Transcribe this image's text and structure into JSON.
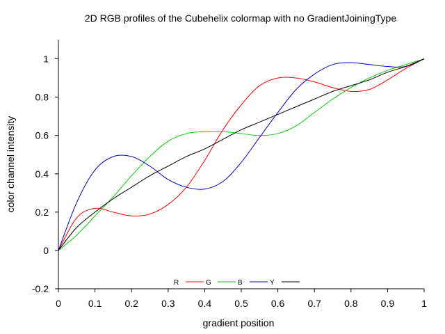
{
  "chart_data": {
    "type": "line",
    "title": "2D RGB profiles of the Cubehelix colormap with no GradientJoiningType",
    "xlabel": "gradient position",
    "ylabel": "color channel intensity",
    "xlim": [
      0,
      1
    ],
    "ylim": [
      -0.2,
      1.1
    ],
    "xticks": [
      "0",
      "0.1",
      "0.2",
      "0.3",
      "0.4",
      "0.5",
      "0.6",
      "0.7",
      "0.8",
      "0.9",
      "1"
    ],
    "yticks": [
      "-0.2",
      "0",
      "0.2",
      "0.4",
      "0.6",
      "0.8",
      "1"
    ],
    "grid": false,
    "legend_position": "bottom-center",
    "x": [
      0,
      0.05,
      0.1,
      0.15,
      0.2,
      0.25,
      0.3,
      0.35,
      0.4,
      0.45,
      0.5,
      0.55,
      0.6,
      0.65,
      0.7,
      0.75,
      0.8,
      0.85,
      0.9,
      0.95,
      1
    ],
    "series": [
      {
        "name": "R",
        "color": "#ff0000",
        "values": [
          0.0,
          0.17,
          0.22,
          0.2,
          0.18,
          0.19,
          0.24,
          0.33,
          0.47,
          0.63,
          0.76,
          0.86,
          0.9,
          0.9,
          0.88,
          0.85,
          0.83,
          0.84,
          0.89,
          0.95,
          1.0
        ]
      },
      {
        "name": "G",
        "color": "#00d200",
        "values": [
          0.0,
          0.08,
          0.18,
          0.28,
          0.39,
          0.49,
          0.57,
          0.61,
          0.62,
          0.62,
          0.61,
          0.6,
          0.61,
          0.65,
          0.72,
          0.79,
          0.85,
          0.9,
          0.94,
          0.97,
          1.0
        ]
      },
      {
        "name": "B",
        "color": "#0000cc",
        "values": [
          0.0,
          0.25,
          0.42,
          0.49,
          0.49,
          0.44,
          0.37,
          0.33,
          0.32,
          0.36,
          0.46,
          0.59,
          0.72,
          0.84,
          0.92,
          0.97,
          0.98,
          0.97,
          0.96,
          0.96,
          1.0
        ]
      },
      {
        "name": "Y",
        "color": "#000000",
        "values": [
          0.0,
          0.12,
          0.2,
          0.27,
          0.33,
          0.39,
          0.44,
          0.49,
          0.53,
          0.58,
          0.63,
          0.67,
          0.71,
          0.75,
          0.79,
          0.83,
          0.86,
          0.89,
          0.93,
          0.96,
          1.0
        ]
      }
    ]
  }
}
